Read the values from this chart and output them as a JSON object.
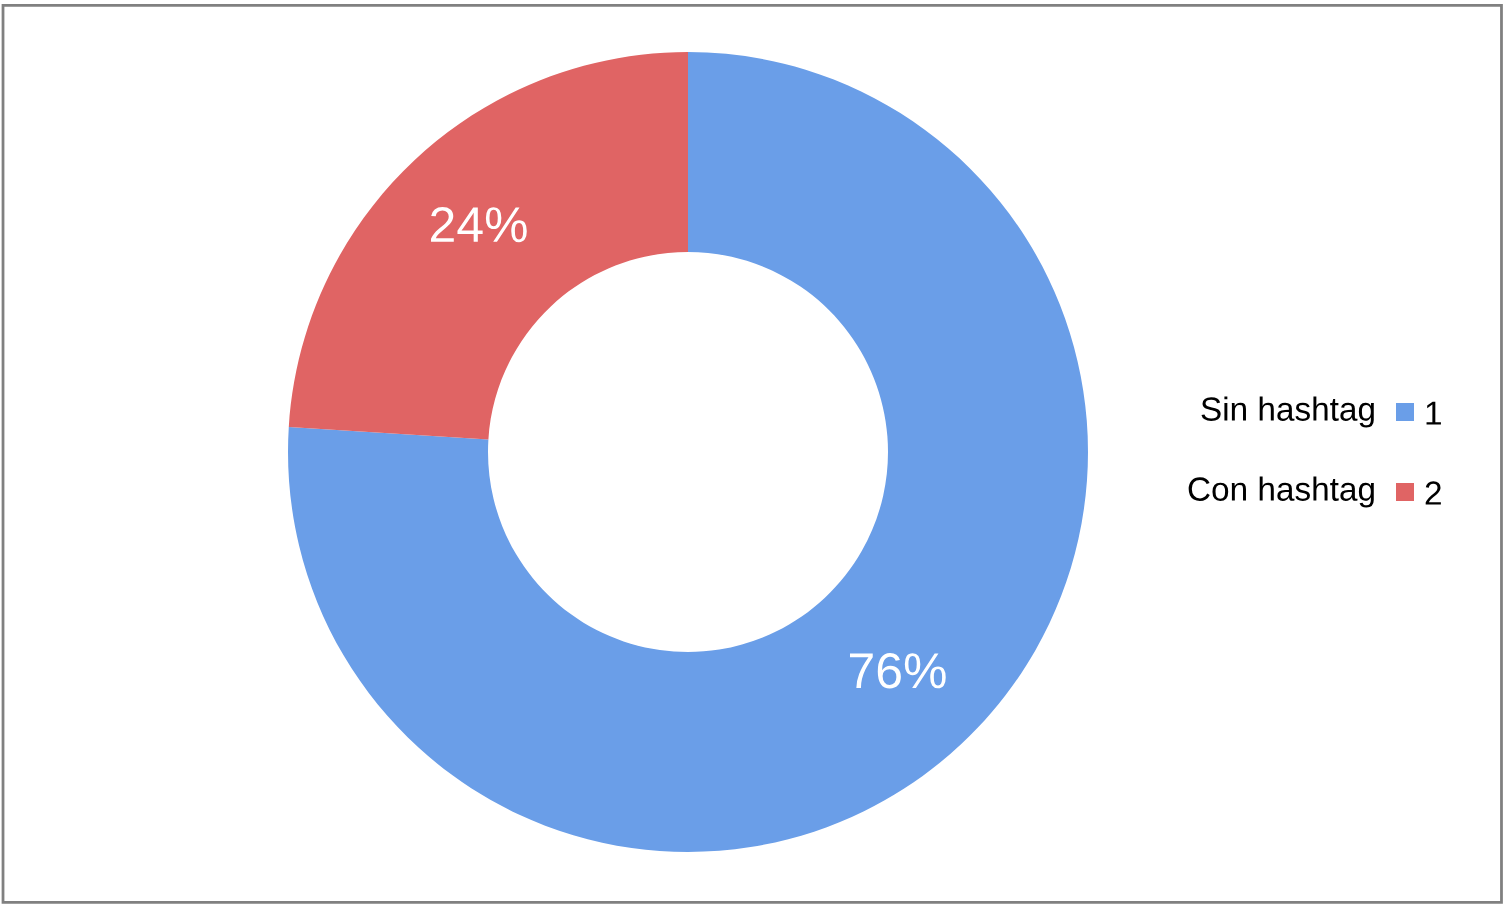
{
  "chart_data": {
    "type": "donut",
    "categories": [
      "Sin hashtag",
      "Con hashtag"
    ],
    "values": [
      76,
      24
    ],
    "colors": [
      "#6a9ee8",
      "#e06464"
    ],
    "value_labels": [
      "76%",
      "24%"
    ],
    "annotations": [
      "1",
      "2"
    ],
    "legend": "right"
  }
}
